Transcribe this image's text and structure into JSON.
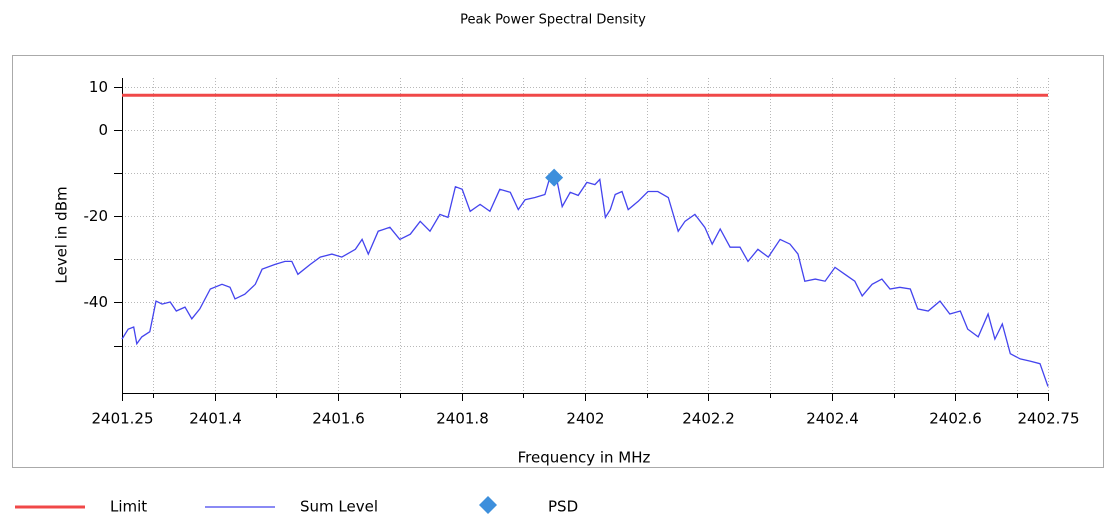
{
  "chart_data": {
    "type": "line",
    "title": "Peak Power Spectral Density",
    "xlabel": "Frequency in MHz",
    "ylabel": "Level in dBm",
    "xlim": [
      2401.25,
      2402.75
    ],
    "xticks": [
      2401.25,
      2401.4,
      2401.6,
      2401.8,
      2402,
      2402.2,
      2402.4,
      2402.6,
      2402.75
    ],
    "xminor_ticks": [
      2401.3,
      2401.5,
      2401.7,
      2401.9,
      2402.1,
      2402.3,
      2402.5,
      2402.7
    ],
    "ylim": [
      -61,
      12
    ],
    "yticks": [
      10,
      0,
      -20,
      -40
    ],
    "yminor_ticks": [
      -10,
      -30,
      -50
    ],
    "grid": true,
    "legend": "bottom",
    "series": [
      {
        "name": "Limit",
        "color": "#f04848",
        "style": "line",
        "x": [
          2401.25,
          2402.75
        ],
        "values": [
          8,
          8
        ]
      },
      {
        "name": "Sum Level",
        "color": "#4444ee",
        "style": "line",
        "x": [
          2401.25,
          2401.26,
          2401.269,
          2401.274,
          2401.282,
          2401.295,
          2401.305,
          2401.315,
          2401.328,
          2401.338,
          2401.352,
          2401.363,
          2401.376,
          2401.393,
          2401.412,
          2401.425,
          2401.433,
          2401.449,
          2401.466,
          2401.477,
          2401.498,
          2401.514,
          2401.525,
          2401.535,
          2401.555,
          2401.571,
          2401.59,
          2401.606,
          2401.628,
          2401.639,
          2401.649,
          2401.665,
          2401.684,
          2401.7,
          2401.717,
          2401.733,
          2401.749,
          2401.765,
          2401.778,
          2401.79,
          2401.801,
          2401.814,
          2401.83,
          2401.846,
          2401.862,
          2401.879,
          2401.892,
          2401.903,
          2401.919,
          2401.935,
          2401.943,
          2401.955,
          2401.963,
          2401.976,
          2401.989,
          2402.003,
          2402.016,
          2402.024,
          2402.033,
          2402.041,
          2402.049,
          2402.06,
          2402.07,
          2402.086,
          2402.102,
          2402.118,
          2402.135,
          2402.151,
          2402.162,
          2402.178,
          2402.194,
          2402.206,
          2402.219,
          2402.235,
          2402.251,
          2402.264,
          2402.28,
          2402.297,
          2402.316,
          2402.332,
          2402.345,
          2402.356,
          2402.373,
          2402.389,
          2402.405,
          2402.421,
          2402.437,
          2402.449,
          2402.465,
          2402.481,
          2402.494,
          2402.51,
          2402.527,
          2402.539,
          2402.556,
          2402.575,
          2402.591,
          2402.608,
          2402.62,
          2402.637,
          2402.653,
          2402.664,
          2402.676,
          2402.689,
          2402.705,
          2402.721,
          2402.737,
          2402.75
        ],
        "values": [
          -48.5,
          -46.2,
          -45.7,
          -49.6,
          -48,
          -46.8,
          -39.7,
          -40.4,
          -39.9,
          -42,
          -41.1,
          -43.8,
          -41.5,
          -36.9,
          -35.8,
          -36.5,
          -39.2,
          -38.1,
          -35.8,
          -32.3,
          -31.2,
          -30.5,
          -30.5,
          -33.5,
          -31.2,
          -29.5,
          -28.8,
          -29.5,
          -27.7,
          -25.4,
          -28.8,
          -23.5,
          -22.6,
          -25.4,
          -24.2,
          -21.2,
          -23.5,
          -19.6,
          -20.3,
          -13.2,
          -13.8,
          -18.9,
          -17.3,
          -18.9,
          -13.8,
          -14.5,
          -18.5,
          -16.2,
          -15.7,
          -15,
          -11.1,
          -12,
          -17.8,
          -14.5,
          -15.2,
          -12.2,
          -12.7,
          -11.5,
          -20.3,
          -18.5,
          -15,
          -14.3,
          -18.5,
          -16.6,
          -14.3,
          -14.3,
          -15.7,
          -23.5,
          -21.2,
          -19.6,
          -22.6,
          -26.5,
          -23,
          -27.2,
          -27.2,
          -30.5,
          -27.7,
          -29.5,
          -25.4,
          -26.5,
          -28.8,
          -35.1,
          -34.6,
          -35.1,
          -31.9,
          -33.5,
          -35.1,
          -38.5,
          -35.8,
          -34.6,
          -36.9,
          -36.5,
          -36.9,
          -41.5,
          -42,
          -39.7,
          -42.7,
          -42,
          -46.2,
          -48,
          -42.7,
          -48.5,
          -45,
          -51.9,
          -53.1,
          -53.6,
          -54.2,
          -59.5
        ]
      },
      {
        "name": "PSD",
        "color": "#3d8fdc",
        "style": "diamond",
        "x": [
          2401.95
        ],
        "values": [
          -11.1
        ]
      }
    ]
  }
}
